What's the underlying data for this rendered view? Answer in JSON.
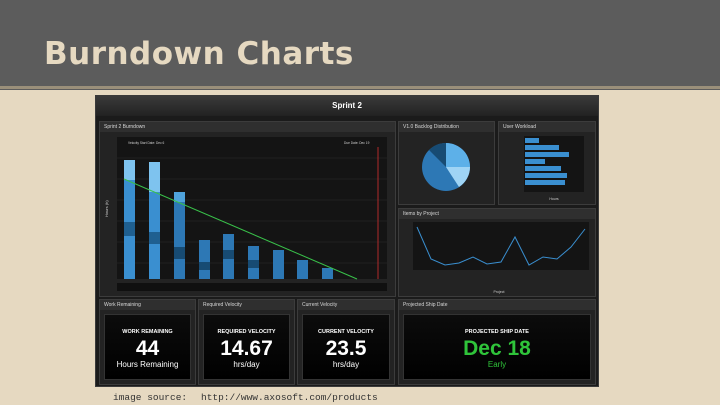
{
  "slide": {
    "title": "Burndown Charts"
  },
  "dashboard": {
    "title": "Sprint 2",
    "burndown": {
      "title": "Sprint 2 Burndown",
      "start_label": "Velocity Start Date: Dec 6",
      "end_label": "Due Date: Dec 19",
      "y_axis_label": "Hours (h)"
    },
    "backlog": {
      "title": "V1.0 Backlog Distribution"
    },
    "workload": {
      "title": "User Workload",
      "x_axis_label": "Hours"
    },
    "items": {
      "title": "Items by Project",
      "x_axis_label": "Project"
    },
    "cards": [
      {
        "title": "Work Remaining",
        "label": "WORK REMAINING",
        "value": "44",
        "sub": "Hours Remaining",
        "accent": "#ffffff"
      },
      {
        "title": "Required Velocity",
        "label": "REQUIRED VELOCITY",
        "value": "14.67",
        "sub": "hrs/day",
        "accent": "#ffffff"
      },
      {
        "title": "Current Velocity",
        "label": "CURRENT VELOCITY",
        "value": "23.5",
        "sub": "hrs/day",
        "accent": "#ffffff"
      },
      {
        "title": "Projected Ship Date",
        "label": "PROJECTED SHIP DATE",
        "value": "Dec 18",
        "sub": "Early",
        "accent": "#2fc43a"
      }
    ]
  },
  "source": {
    "label": "image source:",
    "url": "http://www.axosoft.com/products"
  }
}
